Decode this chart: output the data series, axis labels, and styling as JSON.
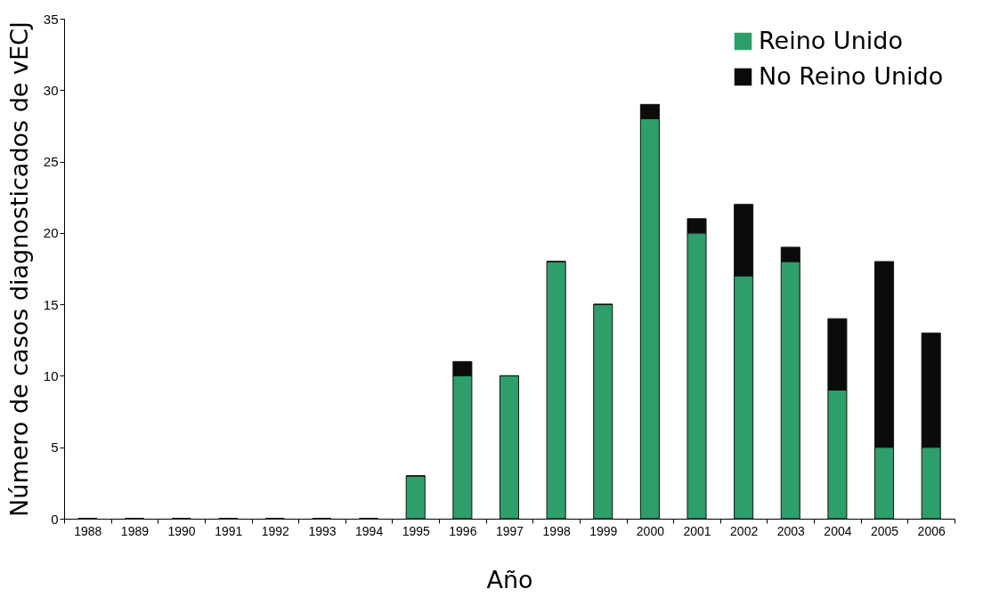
{
  "chart_data": {
    "type": "bar",
    "stacked": true,
    "xlabel": "Año",
    "ylabel": "Número de casos diagnosticados de vECJ",
    "categories": [
      "1988",
      "1989",
      "1990",
      "1991",
      "1992",
      "1993",
      "1994",
      "1995",
      "1996",
      "1997",
      "1998",
      "1999",
      "2000",
      "2001",
      "2002",
      "2003",
      "2004",
      "2005",
      "2006"
    ],
    "series": [
      {
        "name": "Reino Unido",
        "color": "#2e9e6a",
        "values": [
          0,
          0,
          0,
          0,
          0,
          0,
          0,
          3,
          10,
          10,
          18,
          15,
          28,
          20,
          17,
          18,
          9,
          5,
          5
        ]
      },
      {
        "name": "No Reino Unido",
        "color": "#0a0c0a",
        "values": [
          0,
          0,
          0,
          0,
          0,
          0,
          0,
          0,
          1,
          0,
          0,
          0,
          1,
          1,
          5,
          1,
          5,
          13,
          8
        ]
      }
    ],
    "ylim": [
      0,
      35
    ],
    "yticks": [
      0,
      5,
      10,
      15,
      20,
      25,
      30,
      35
    ],
    "grid": false,
    "legend": "top right"
  }
}
